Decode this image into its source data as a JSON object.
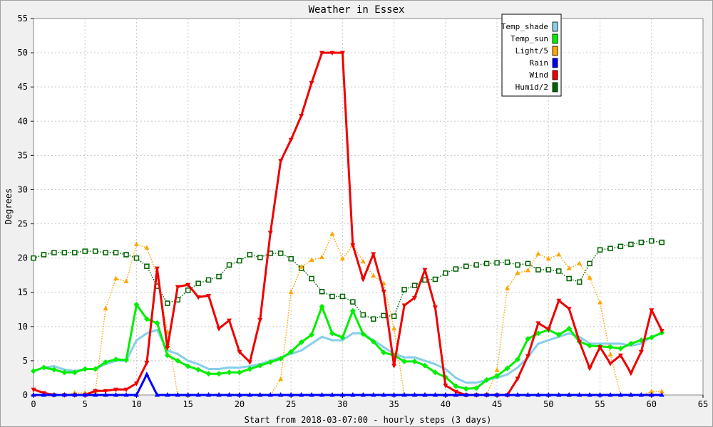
{
  "chart_data": {
    "type": "line",
    "title": "Weather in Essex",
    "xlabel": "Start from 2018-03-07:00 - hourly steps (3 days)",
    "ylabel": "Degrees",
    "xlim": [
      0,
      65
    ],
    "ylim": [
      0,
      55
    ],
    "x_ticks": [
      0,
      5,
      10,
      15,
      20,
      25,
      30,
      35,
      40,
      45,
      50,
      55,
      60,
      65
    ],
    "y_ticks": [
      0,
      5,
      10,
      15,
      20,
      25,
      30,
      35,
      40,
      45,
      50,
      55
    ],
    "grid": true,
    "legend_position": "top-right",
    "series": [
      {
        "name": "Temp_shade",
        "color": "#87ceeb",
        "marker": "none",
        "style": "solid-thick",
        "values": [
          3.5,
          4.0,
          4.2,
          3.7,
          3.5,
          3.8,
          3.8,
          4.5,
          5.0,
          5.0,
          8.0,
          9.0,
          9.5,
          6.5,
          6.0,
          5.0,
          4.5,
          3.8,
          3.8,
          4.0,
          4.0,
          4.2,
          4.5,
          5.0,
          5.5,
          6.0,
          6.5,
          7.5,
          8.5,
          8.0,
          8.0,
          9.0,
          9.0,
          8.0,
          7.0,
          6.0,
          5.5,
          5.5,
          5.0,
          4.5,
          3.8,
          2.5,
          1.8,
          1.8,
          2.2,
          2.5,
          3.0,
          4.0,
          5.5,
          7.5,
          8.0,
          8.5,
          9.0,
          8.5,
          7.5,
          7.5,
          7.5,
          7.5,
          7.2,
          7.5,
          8.5,
          9.0
        ]
      },
      {
        "name": "Temp_sun",
        "color": "#00ee00",
        "marker": "diamond",
        "style": "solid-thick",
        "values": [
          3.5,
          4.0,
          3.7,
          3.3,
          3.3,
          3.8,
          3.8,
          4.8,
          5.2,
          5.1,
          13.2,
          11.1,
          10.5,
          5.8,
          5.0,
          4.2,
          3.7,
          3.1,
          3.1,
          3.3,
          3.3,
          3.8,
          4.3,
          4.8,
          5.3,
          6.3,
          7.7,
          8.8,
          12.9,
          9.0,
          8.4,
          12.3,
          8.9,
          7.8,
          6.2,
          5.8,
          4.9,
          4.9,
          4.3,
          3.3,
          2.6,
          1.3,
          0.9,
          1.0,
          2.2,
          2.8,
          3.9,
          5.2,
          8.2,
          9.0,
          9.5,
          8.8,
          9.7,
          7.8,
          7.2,
          7.1,
          7.0,
          6.8,
          7.5,
          8.0,
          8.4,
          9.1
        ]
      },
      {
        "name": "Light/5",
        "color": "#ffa500",
        "marker": "triangle",
        "style": "dotted",
        "values": [
          0,
          0,
          0,
          0,
          0.3,
          0.3,
          0.5,
          12.6,
          17.0,
          16.6,
          22.0,
          21.5,
          17.5,
          9.2,
          0,
          0,
          0,
          0,
          0,
          0,
          0,
          0,
          0,
          0,
          2.3,
          15.0,
          18.7,
          19.7,
          20.1,
          23.5,
          19.9,
          21.9,
          19.5,
          17.4,
          16.3,
          9.7,
          0,
          0,
          0,
          0,
          0,
          0,
          0,
          0,
          0,
          3.6,
          15.6,
          17.8,
          18.2,
          20.6,
          19.9,
          20.5,
          18.5,
          19.2,
          17.1,
          13.5,
          5.9,
          0,
          0,
          0,
          0.5,
          0.5
        ]
      },
      {
        "name": "Rain",
        "color": "#0000ff",
        "marker": "triangle",
        "style": "solid-thick",
        "values": [
          0,
          0,
          0,
          0,
          0,
          0,
          0,
          0,
          0,
          0,
          0,
          3.0,
          0,
          0,
          0,
          0,
          0,
          0,
          0,
          0,
          0,
          0,
          0,
          0,
          0,
          0,
          0,
          0,
          0,
          0,
          0,
          0,
          0,
          0,
          0,
          0,
          0,
          0,
          0,
          0,
          0,
          0,
          0,
          0,
          0,
          0,
          0,
          0,
          0,
          0,
          0,
          0,
          0,
          0,
          0,
          0,
          0,
          0,
          0,
          0,
          0,
          0
        ]
      },
      {
        "name": "Wind",
        "color": "#ee0000",
        "marker": "triangle-down",
        "style": "solid-thick",
        "values": [
          0.8,
          0.3,
          0,
          0,
          0,
          0,
          0.6,
          0.6,
          0.8,
          0.8,
          1.7,
          4.7,
          18.5,
          6.9,
          15.8,
          16.1,
          14.3,
          14.5,
          9.7,
          10.9,
          6.3,
          4.8,
          11.0,
          23.7,
          34.2,
          37.3,
          40.8,
          45.6,
          50.0,
          50.0,
          50.0,
          21.9,
          16.9,
          20.6,
          15.1,
          4.3,
          13.1,
          14.2,
          18.3,
          12.8,
          1.4,
          0.5,
          0,
          0,
          0,
          0,
          0,
          2.4,
          5.7,
          10.5,
          9.6,
          13.8,
          12.6,
          7.8,
          3.9,
          7.0,
          4.6,
          5.8,
          3.2,
          6.3,
          12.4,
          9.4
        ]
      },
      {
        "name": "Humid/2",
        "color": "#006400",
        "marker": "square-open",
        "style": "dotted",
        "values": [
          20.0,
          20.5,
          20.8,
          20.8,
          20.8,
          21.0,
          21.0,
          20.8,
          20.8,
          20.5,
          20.0,
          18.8,
          15.9,
          13.4,
          13.9,
          15.3,
          16.3,
          16.8,
          17.3,
          19.0,
          19.6,
          20.5,
          20.1,
          20.7,
          20.7,
          19.9,
          18.5,
          17.0,
          15.1,
          14.4,
          14.4,
          13.6,
          11.7,
          11.1,
          11.6,
          11.5,
          15.4,
          16.0,
          16.8,
          16.9,
          17.8,
          18.4,
          18.8,
          19.0,
          19.2,
          19.3,
          19.4,
          19.0,
          19.2,
          18.3,
          18.3,
          18.1,
          17.0,
          16.5,
          19.2,
          21.2,
          21.4,
          21.7,
          22.0,
          22.3,
          22.5,
          22.3
        ]
      }
    ]
  }
}
